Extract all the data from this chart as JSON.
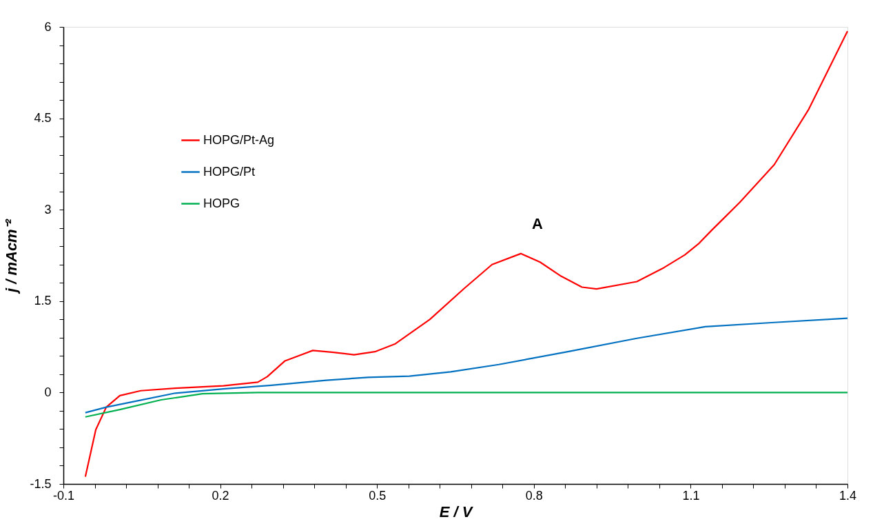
{
  "chart_data": {
    "type": "line",
    "xlabel": "E / V",
    "ylabel": "j / mAcm⁻²",
    "xlim": [
      -0.1,
      1.4
    ],
    "ylim": [
      -1.5,
      6
    ],
    "xticks": [
      -0.1,
      {
        "value": -0.04,
        "label": null
      },
      {
        "value": 0.02,
        "label": null
      },
      {
        "value": 0.08,
        "label": null
      },
      {
        "value": 0.14,
        "label": null
      },
      0.2,
      {
        "value": 0.26,
        "label": null
      },
      {
        "value": 0.32,
        "label": null
      },
      {
        "value": 0.38,
        "label": null
      },
      {
        "value": 0.44,
        "label": null
      },
      0.5,
      {
        "value": 0.56,
        "label": null
      },
      {
        "value": 0.62,
        "label": null
      },
      {
        "value": 0.68,
        "label": null
      },
      {
        "value": 0.74,
        "label": null
      },
      0.8,
      {
        "value": 0.86,
        "label": null
      },
      {
        "value": 0.92,
        "label": null
      },
      {
        "value": 0.98,
        "label": null
      },
      {
        "value": 1.04,
        "label": null
      },
      1.1,
      {
        "value": 1.16,
        "label": null
      },
      {
        "value": 1.22,
        "label": null
      },
      {
        "value": 1.28,
        "label": null
      },
      {
        "value": 1.34,
        "label": null
      },
      1.4
    ],
    "yticks": [
      -1.5,
      {
        "value": -1.2,
        "label": null
      },
      {
        "value": -0.9,
        "label": null
      },
      {
        "value": -0.6,
        "label": null
      },
      {
        "value": -0.3,
        "label": null
      },
      0,
      {
        "value": 0.3,
        "label": null
      },
      {
        "value": 0.6,
        "label": null
      },
      {
        "value": 0.9,
        "label": null
      },
      {
        "value": 1.2,
        "label": null
      },
      1.5,
      {
        "value": 1.8,
        "label": null
      },
      {
        "value": 2.1,
        "label": null
      },
      {
        "value": 2.4,
        "label": null
      },
      {
        "value": 2.7,
        "label": null
      },
      3,
      {
        "value": 3.3,
        "label": null
      },
      {
        "value": 3.6,
        "label": null
      },
      {
        "value": 3.9,
        "label": null
      },
      {
        "value": 4.2,
        "label": null
      },
      4.5,
      {
        "value": 4.8,
        "label": null
      },
      {
        "value": 5.1,
        "label": null
      },
      {
        "value": 5.4,
        "label": null
      },
      {
        "value": 5.7,
        "label": null
      },
      6
    ],
    "grid": false,
    "legend": "top left",
    "marker": "none",
    "line_style": "solid",
    "annotations": [
      "A"
    ],
    "series": [
      {
        "name": "HOPG/Pt-Ag",
        "color": "#ff0000",
        "x": [
          -0.058,
          -0.038,
          -0.018,
          0.008,
          0.048,
          0.114,
          0.206,
          0.272,
          0.29,
          0.324,
          0.377,
          0.417,
          0.456,
          0.496,
          0.535,
          0.601,
          0.667,
          0.72,
          0.775,
          0.812,
          0.852,
          0.892,
          0.92,
          0.997,
          1.049,
          1.089,
          1.115,
          1.141,
          1.161,
          1.194,
          1.26,
          1.326,
          1.4
        ],
        "values": [
          -1.38,
          -0.61,
          -0.24,
          -0.05,
          0.03,
          0.07,
          0.11,
          0.17,
          0.26,
          0.52,
          0.69,
          0.66,
          0.62,
          0.67,
          0.8,
          1.2,
          1.71,
          2.1,
          2.28,
          2.14,
          1.91,
          1.73,
          1.7,
          1.82,
          2.05,
          2.26,
          2.44,
          2.67,
          2.84,
          3.12,
          3.74,
          4.65,
          5.93
        ]
      },
      {
        "name": "HOPG/Pt",
        "color": "#0070c0",
        "x": [
          -0.058,
          -0.018,
          0.034,
          0.114,
          0.206,
          0.298,
          0.403,
          0.483,
          0.562,
          0.641,
          0.733,
          0.865,
          0.997,
          1.128,
          1.26,
          1.4
        ],
        "values": [
          -0.33,
          -0.24,
          -0.15,
          -0.01,
          0.06,
          0.12,
          0.2,
          0.25,
          0.27,
          0.34,
          0.46,
          0.67,
          0.89,
          1.08,
          1.15,
          1.22
        ]
      },
      {
        "name": "HOPG",
        "color": "#00b050",
        "x": [
          -0.058,
          0.008,
          0.087,
          0.166,
          0.272,
          0.5,
          0.8,
          1.1,
          1.4
        ],
        "values": [
          -0.4,
          -0.28,
          -0.12,
          -0.02,
          0,
          0,
          0,
          0,
          0
        ]
      }
    ]
  }
}
